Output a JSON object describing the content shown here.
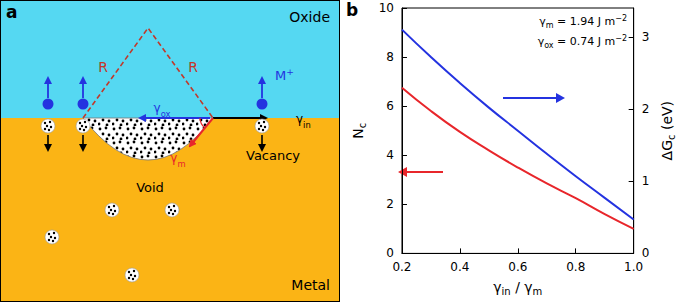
{
  "diagram": {
    "panel_label": "a",
    "regions": {
      "top": "Oxide",
      "bottom": "Metal"
    },
    "labels": {
      "radius": [
        "R",
        "R"
      ],
      "void": "Void",
      "vacancy": "Vacancy",
      "ion": [
        {
          "t": "M"
        },
        {
          "t": "+",
          "sup": true
        }
      ],
      "gamma_ox": [
        {
          "t": "γ"
        },
        {
          "t": "ox",
          "sub": true
        }
      ],
      "gamma_in": [
        {
          "t": "γ"
        },
        {
          "t": "in",
          "sub": true
        }
      ],
      "gamma_m": [
        {
          "t": "γ"
        },
        {
          "t": "m",
          "sub": true
        }
      ]
    }
  },
  "chart_data": {
    "panel_label": "b",
    "type": "line",
    "x_label": [
      {
        "t": "γ"
      },
      {
        "t": "in",
        "sub": true
      },
      {
        "t": " / γ"
      },
      {
        "t": "m",
        "sub": true
      }
    ],
    "y_label": [
      {
        "t": "N"
      },
      {
        "t": "c",
        "sub": true
      }
    ],
    "y2_label": [
      {
        "t": "ΔG"
      },
      {
        "t": "c",
        "sub": true
      },
      {
        "t": " (eV)"
      }
    ],
    "annotations": [
      [
        {
          "t": "γ"
        },
        {
          "t": "m",
          "sub": true
        },
        {
          "t": " = 1.94 J m"
        },
        {
          "t": "−2",
          "sup": true
        }
      ],
      [
        {
          "t": "γ"
        },
        {
          "t": "ox",
          "sub": true
        },
        {
          "t": " = 0.74 J m"
        },
        {
          "t": "−2",
          "sup": true
        }
      ]
    ],
    "x": [
      0.2,
      0.3,
      0.4,
      0.5,
      0.6,
      0.7,
      0.8,
      0.9,
      1.0
    ],
    "series": [
      {
        "color": "#e8262b",
        "axis": "y",
        "values": [
          6.75,
          5.8,
          4.95,
          4.2,
          3.5,
          2.85,
          2.25,
          1.6,
          1.0
        ]
      },
      {
        "color": "#2433e0",
        "axis": "y2",
        "values": [
          3.1,
          2.72,
          2.36,
          2.02,
          1.7,
          1.38,
          1.07,
          0.77,
          0.47
        ]
      }
    ],
    "xlim": [
      0.2,
      1.0
    ],
    "xticks": [
      0.2,
      0.4,
      0.6,
      0.8,
      {
        "value": 1.0,
        "label": "1.0"
      }
    ],
    "ylim": [
      0,
      10
    ],
    "yticks": [
      0,
      2,
      4,
      6,
      8,
      10
    ],
    "y2lim": [
      0,
      3.4
    ],
    "y2ticks": [
      0,
      1,
      2,
      3
    ],
    "grid": false
  }
}
